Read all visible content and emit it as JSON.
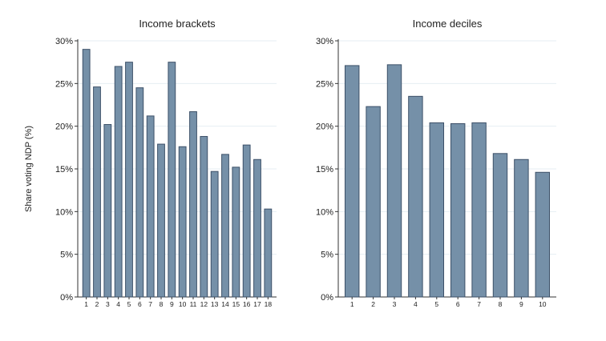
{
  "figure": {
    "ylabel": "Share voting NDP (%)",
    "bar_color": "#7590a8",
    "bar_stroke": "#3c5068",
    "gridline_color": "#e6eef3"
  },
  "chart_data": [
    {
      "type": "bar",
      "title": "Income brackets",
      "xlabel": "",
      "ylabel": "Share voting NDP (%)",
      "categories": [
        "1",
        "2",
        "3",
        "4",
        "5",
        "6",
        "7",
        "8",
        "9",
        "10",
        "11",
        "12",
        "13",
        "14",
        "15",
        "16",
        "17",
        "18"
      ],
      "values": [
        29.0,
        24.6,
        20.2,
        27.0,
        27.5,
        24.5,
        21.2,
        17.9,
        27.5,
        17.6,
        21.7,
        18.8,
        14.7,
        16.7,
        15.2,
        17.8,
        16.1,
        10.3
      ],
      "yticks": [
        "0%",
        "5%",
        "10%",
        "15%",
        "20%",
        "25%",
        "30%"
      ],
      "ylim": [
        0,
        30
      ],
      "grid": true
    },
    {
      "type": "bar",
      "title": "Income deciles",
      "xlabel": "",
      "ylabel": "",
      "categories": [
        "1",
        "2",
        "3",
        "4",
        "5",
        "6",
        "7",
        "8",
        "9",
        "10"
      ],
      "values": [
        27.1,
        22.3,
        27.2,
        23.5,
        20.4,
        20.3,
        20.4,
        16.8,
        16.1,
        14.6
      ],
      "yticks": [
        "0%",
        "5%",
        "10%",
        "15%",
        "20%",
        "25%",
        "30%"
      ],
      "ylim": [
        0,
        30
      ],
      "grid": true
    }
  ]
}
